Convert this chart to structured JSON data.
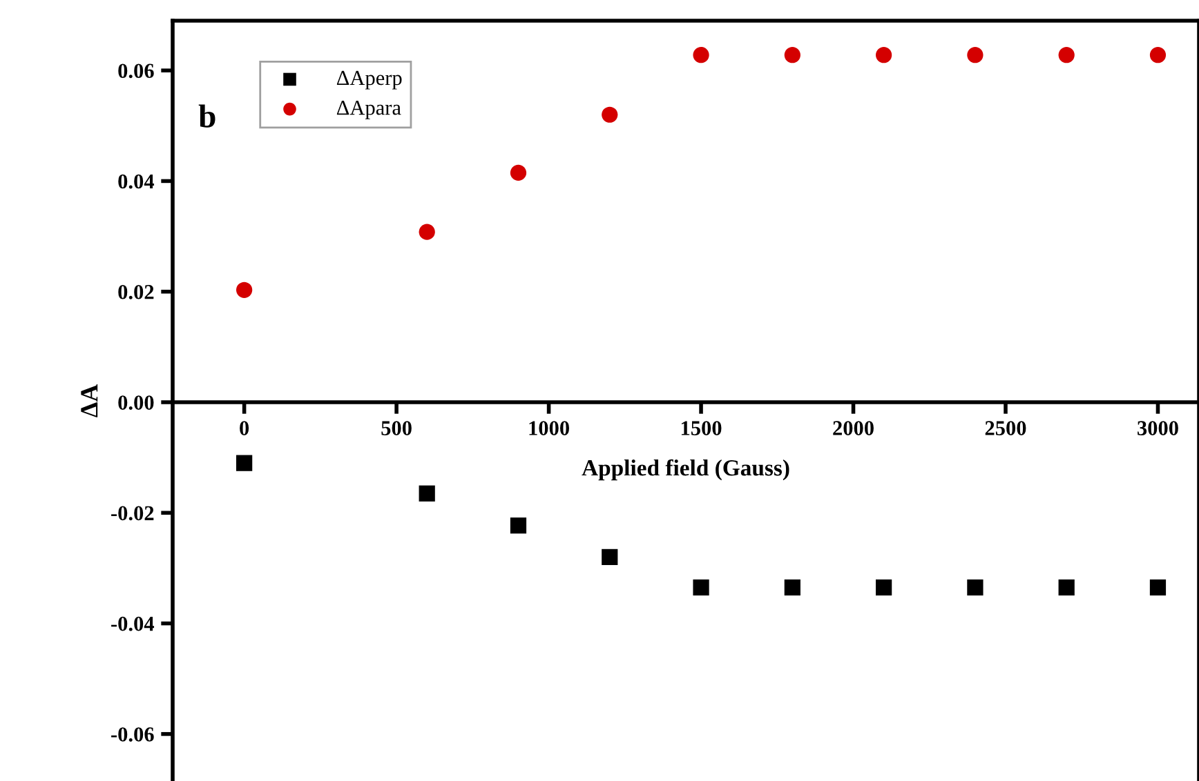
{
  "chart_data": {
    "type": "scatter",
    "xlabel": "Applied field (Gauss)",
    "ylabel": "ΔA",
    "x": [
      0,
      600,
      900,
      1200,
      1500,
      1800,
      2100,
      2400,
      2700,
      3000
    ],
    "series": [
      {
        "name": "ΔAperp",
        "color": "#000000",
        "marker": "square",
        "values": [
          -0.011,
          -0.0165,
          -0.0223,
          -0.028,
          -0.0335,
          -0.0335,
          -0.0335,
          -0.0335,
          -0.0335,
          -0.0335
        ]
      },
      {
        "name": "ΔApara",
        "color": "#d40000",
        "marker": "circle",
        "values": [
          0.0203,
          0.0308,
          0.0415,
          0.052,
          0.0628,
          0.0628,
          0.0628,
          0.0628,
          0.0628,
          0.0628
        ]
      }
    ],
    "annotations": [
      "b"
    ],
    "xlim": [
      -235,
      3135
    ],
    "ylim": [
      -0.0685,
      0.069
    ],
    "xticks": [
      0,
      500,
      1000,
      1500,
      2000,
      2500,
      3000
    ],
    "yticks": [
      {
        "value": -0.06,
        "label": "-0.06"
      },
      {
        "value": -0.04,
        "label": "-0.04"
      },
      {
        "value": -0.02,
        "label": "-0.02"
      },
      {
        "value": 0,
        "label": "0.00"
      },
      {
        "value": 0.02,
        "label": "0.02"
      },
      {
        "value": 0.04,
        "label": "0.04"
      },
      {
        "value": 0.06,
        "label": "0.06"
      }
    ],
    "grid": false,
    "legend": "top left"
  }
}
